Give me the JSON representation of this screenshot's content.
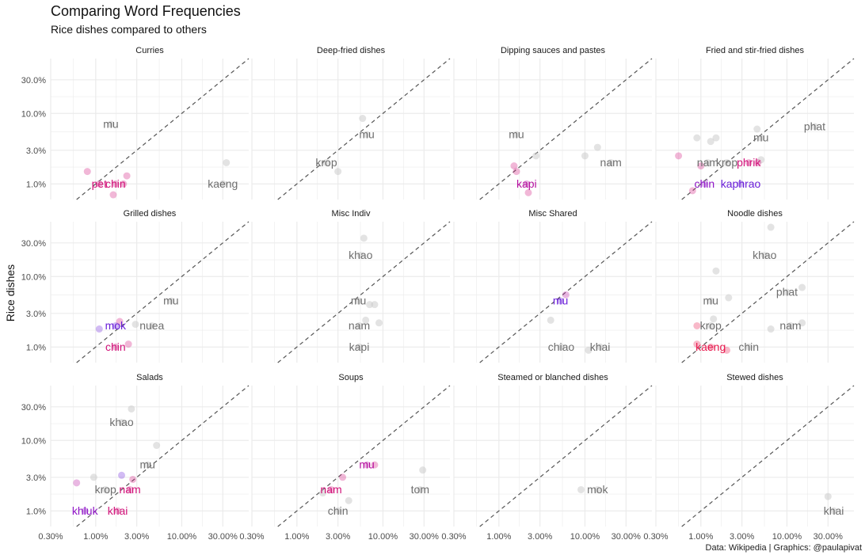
{
  "title": "Comparing Word Frequencies",
  "subtitle": "Rice dishes compared to others",
  "caption": "Data: Wikipedia | Graphics: @paulapivat",
  "colors": {
    "text_gray": "#6e6e6e",
    "point_gray": "#c8c8c8",
    "diagonal": "#555555",
    "grid": "#ebebeb",
    "palette": [
      "#6a1ed9",
      "#8f14c7",
      "#b5109f",
      "#d11279",
      "#e8174c"
    ]
  },
  "chart_data": {
    "type": "scatter",
    "ylabel": "Rice dishes",
    "xlabel": "",
    "scale": "log10",
    "xlim": [
      0.003,
      0.6
    ],
    "ylim": [
      0.006,
      0.6
    ],
    "x_ticks": [
      {
        "value": 0.003,
        "label": "0.30%"
      },
      {
        "value": 0.01,
        "label": "1.00%"
      },
      {
        "value": 0.03,
        "label": "3.00%"
      },
      {
        "value": 0.1,
        "label": "10.00%"
      },
      {
        "value": 0.3,
        "label": "30.00%"
      }
    ],
    "y_ticks": [
      {
        "value": 0.01,
        "label": "1.0%"
      },
      {
        "value": 0.03,
        "label": "3.0%"
      },
      {
        "value": 0.1,
        "label": "10.0%"
      },
      {
        "value": 0.3,
        "label": "30.0%"
      }
    ],
    "panels": [
      {
        "title": "Curries",
        "points": [
          {
            "x": 0.015,
            "y": 0.07,
            "label": "mu",
            "c": -1
          },
          {
            "x": 0.008,
            "y": 0.015,
            "c": 3
          },
          {
            "x": 0.011,
            "y": 0.01,
            "label": "pet",
            "c": 3
          },
          {
            "x": 0.017,
            "y": 0.01,
            "label": "chin",
            "c": 3
          },
          {
            "x": 0.016,
            "y": 0.007,
            "c": 3
          },
          {
            "x": 0.023,
            "y": 0.013,
            "c": 3
          },
          {
            "x": 0.021,
            "y": 0.01,
            "c": 3
          },
          {
            "x": 0.33,
            "y": 0.02,
            "c": -1
          },
          {
            "x": 0.3,
            "y": 0.01,
            "label": "kaeng",
            "c": -1
          }
        ]
      },
      {
        "title": "Deep-fried dishes",
        "points": [
          {
            "x": 0.058,
            "y": 0.085,
            "c": -1
          },
          {
            "x": 0.065,
            "y": 0.05,
            "label": "mu",
            "c": -1
          },
          {
            "x": 0.03,
            "y": 0.015,
            "c": -1
          },
          {
            "x": 0.022,
            "y": 0.02,
            "label": "krop",
            "c": -1
          }
        ]
      },
      {
        "title": "Dipping sauces and pastes",
        "points": [
          {
            "x": 0.016,
            "y": 0.05,
            "label": "mu",
            "c": -1
          },
          {
            "x": 0.027,
            "y": 0.025,
            "c": -1
          },
          {
            "x": 0.1,
            "y": 0.025,
            "c": -1
          },
          {
            "x": 0.14,
            "y": 0.033,
            "c": -1
          },
          {
            "x": 0.2,
            "y": 0.02,
            "label": "nam",
            "c": -1
          },
          {
            "x": 0.015,
            "y": 0.018,
            "c": 3
          },
          {
            "x": 0.016,
            "y": 0.015,
            "c": 3
          },
          {
            "x": 0.021,
            "y": 0.01,
            "label": "kapi",
            "c": 2
          },
          {
            "x": 0.022,
            "y": 0.0075,
            "c": 3
          }
        ]
      },
      {
        "title": "Fried and stir-fried dishes",
        "points": [
          {
            "x": 0.21,
            "y": 0.065,
            "label": "phat",
            "c": -1
          },
          {
            "x": 0.045,
            "y": 0.06,
            "c": -1
          },
          {
            "x": 0.05,
            "y": 0.045,
            "label": "mu",
            "c": -1
          },
          {
            "x": 0.009,
            "y": 0.045,
            "c": -1
          },
          {
            "x": 0.013,
            "y": 0.04,
            "c": -1
          },
          {
            "x": 0.015,
            "y": 0.045,
            "c": -1
          },
          {
            "x": 0.0055,
            "y": 0.025,
            "c": 3
          },
          {
            "x": 0.012,
            "y": 0.02,
            "label": "nam",
            "c": -1
          },
          {
            "x": 0.02,
            "y": 0.02,
            "label": "krop",
            "c": -1
          },
          {
            "x": 0.036,
            "y": 0.02,
            "label": "phrik",
            "c": 3
          },
          {
            "x": 0.05,
            "y": 0.022,
            "c": -1
          },
          {
            "x": 0.046,
            "y": 0.02,
            "c": 3
          },
          {
            "x": 0.01,
            "y": 0.018,
            "c": 3
          },
          {
            "x": 0.011,
            "y": 0.01,
            "label": "chin",
            "c": 1
          },
          {
            "x": 0.008,
            "y": 0.008,
            "c": 3
          },
          {
            "x": 0.029,
            "y": 0.01,
            "label": "kaphrao",
            "c": 0
          }
        ]
      },
      {
        "title": "Grilled dishes",
        "points": [
          {
            "x": 0.075,
            "y": 0.045,
            "label": "mu",
            "c": -1
          },
          {
            "x": 0.011,
            "y": 0.018,
            "c": 0
          },
          {
            "x": 0.017,
            "y": 0.02,
            "label": "mok",
            "c": 0
          },
          {
            "x": 0.019,
            "y": 0.023,
            "c": 3
          },
          {
            "x": 0.029,
            "y": 0.021,
            "c": -1
          },
          {
            "x": 0.045,
            "y": 0.02,
            "label": "nuea",
            "c": -1
          },
          {
            "x": 0.017,
            "y": 0.01,
            "label": "chin",
            "c": 3
          },
          {
            "x": 0.024,
            "y": 0.011,
            "c": 3
          }
        ]
      },
      {
        "title": "Misc Indiv",
        "points": [
          {
            "x": 0.06,
            "y": 0.35,
            "c": -1
          },
          {
            "x": 0.055,
            "y": 0.2,
            "label": "khao",
            "c": -1
          },
          {
            "x": 0.052,
            "y": 0.045,
            "label": "mu",
            "c": -1
          },
          {
            "x": 0.07,
            "y": 0.04,
            "c": -1
          },
          {
            "x": 0.08,
            "y": 0.04,
            "c": -1
          },
          {
            "x": 0.063,
            "y": 0.024,
            "c": -1
          },
          {
            "x": 0.09,
            "y": 0.022,
            "c": -1
          },
          {
            "x": 0.053,
            "y": 0.02,
            "label": "nam",
            "c": -1
          },
          {
            "x": 0.053,
            "y": 0.01,
            "label": "kapi",
            "c": -1
          }
        ]
      },
      {
        "title": "Misc Shared",
        "points": [
          {
            "x": 0.06,
            "y": 0.055,
            "c": 2
          },
          {
            "x": 0.052,
            "y": 0.045,
            "label": "mu",
            "c": 0
          },
          {
            "x": 0.04,
            "y": 0.024,
            "c": -1
          },
          {
            "x": 0.053,
            "y": 0.01,
            "label": "chiao",
            "c": -1
          },
          {
            "x": 0.11,
            "y": 0.009,
            "c": -1
          },
          {
            "x": 0.15,
            "y": 0.01,
            "label": "khai",
            "c": -1
          }
        ]
      },
      {
        "title": "Noodle dishes",
        "points": [
          {
            "x": 0.065,
            "y": 0.5,
            "c": -1
          },
          {
            "x": 0.055,
            "y": 0.2,
            "label": "khao",
            "c": -1
          },
          {
            "x": 0.015,
            "y": 0.12,
            "c": -1
          },
          {
            "x": 0.15,
            "y": 0.07,
            "c": -1
          },
          {
            "x": 0.1,
            "y": 0.06,
            "label": "phat",
            "c": -1
          },
          {
            "x": 0.021,
            "y": 0.05,
            "c": -1
          },
          {
            "x": 0.013,
            "y": 0.045,
            "label": "mu",
            "c": -1
          },
          {
            "x": 0.014,
            "y": 0.025,
            "c": -1
          },
          {
            "x": 0.013,
            "y": 0.02,
            "label": "krop",
            "c": -1
          },
          {
            "x": 0.009,
            "y": 0.02,
            "c": 4
          },
          {
            "x": 0.065,
            "y": 0.018,
            "c": -1
          },
          {
            "x": 0.15,
            "y": 0.022,
            "c": -1
          },
          {
            "x": 0.11,
            "y": 0.02,
            "label": "nam",
            "c": -1
          },
          {
            "x": 0.009,
            "y": 0.011,
            "c": 4
          },
          {
            "x": 0.013,
            "y": 0.01,
            "label": "kaeng",
            "c": 4
          },
          {
            "x": 0.036,
            "y": 0.01,
            "label": "chin",
            "c": -1
          },
          {
            "x": 0.02,
            "y": 0.009,
            "c": 4
          }
        ]
      },
      {
        "title": "Salads",
        "points": [
          {
            "x": 0.026,
            "y": 0.28,
            "c": -1
          },
          {
            "x": 0.02,
            "y": 0.18,
            "label": "khao",
            "c": -1
          },
          {
            "x": 0.051,
            "y": 0.085,
            "c": -1
          },
          {
            "x": 0.04,
            "y": 0.045,
            "label": "mu",
            "c": -1
          },
          {
            "x": 0.02,
            "y": 0.032,
            "c": 0
          },
          {
            "x": 0.027,
            "y": 0.028,
            "c": 3
          },
          {
            "x": 0.0095,
            "y": 0.03,
            "c": -1
          },
          {
            "x": 0.006,
            "y": 0.025,
            "c": 2
          },
          {
            "x": 0.013,
            "y": 0.02,
            "label": "krop",
            "c": -1
          },
          {
            "x": 0.025,
            "y": 0.02,
            "label": "nam",
            "c": 3
          },
          {
            "x": 0.0075,
            "y": 0.01,
            "label": "khluk",
            "c": 1
          },
          {
            "x": 0.018,
            "y": 0.01,
            "label": "khai",
            "c": 3
          }
        ]
      },
      {
        "title": "Soups",
        "points": [
          {
            "x": 0.08,
            "y": 0.045,
            "c": 3
          },
          {
            "x": 0.065,
            "y": 0.045,
            "label": "mu",
            "c": 2
          },
          {
            "x": 0.29,
            "y": 0.038,
            "c": -1
          },
          {
            "x": 0.034,
            "y": 0.03,
            "c": 3
          },
          {
            "x": 0.27,
            "y": 0.02,
            "label": "tom",
            "c": -1
          },
          {
            "x": 0.02,
            "y": 0.018,
            "c": -1
          },
          {
            "x": 0.025,
            "y": 0.02,
            "label": "nam",
            "c": 3
          },
          {
            "x": 0.04,
            "y": 0.014,
            "c": -1
          },
          {
            "x": 0.03,
            "y": 0.01,
            "label": "chin",
            "c": -1
          }
        ]
      },
      {
        "title": "Steamed or blanched dishes",
        "points": [
          {
            "x": 0.09,
            "y": 0.02,
            "c": -1
          },
          {
            "x": 0.14,
            "y": 0.02,
            "label": "mok",
            "c": -1
          }
        ]
      },
      {
        "title": "Stewed dishes",
        "points": [
          {
            "x": 0.3,
            "y": 0.016,
            "c": -1
          },
          {
            "x": 0.35,
            "y": 0.01,
            "label": "khai",
            "c": -1
          }
        ]
      }
    ]
  }
}
